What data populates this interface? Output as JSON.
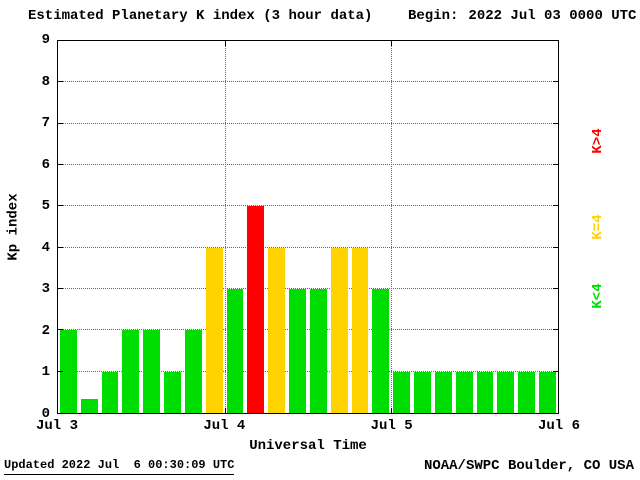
{
  "header": {
    "title": "Estimated Planetary K index (3 hour data)",
    "begin_label": "Begin:",
    "begin_value": "2022 Jul 03 0000 UTC"
  },
  "footer": {
    "updated": "Updated 2022 Jul  6 00:30:09 UTC",
    "source": "NOAA/SWPC Boulder, CO USA"
  },
  "chart_data": {
    "type": "bar",
    "title": "Estimated Planetary K index (3 hour data)",
    "xlabel": "Universal Time",
    "ylabel": "Kp index",
    "ylim": [
      0,
      9
    ],
    "yticks": [
      0,
      1,
      2,
      3,
      4,
      5,
      6,
      7,
      8,
      9
    ],
    "xtick_labels": [
      "Jul 3",
      "Jul 4",
      "Jul 5",
      "Jul 6"
    ],
    "hours_per_bar": 3,
    "bars_per_day": 8,
    "values": [
      2,
      0.33,
      1,
      2,
      2,
      1,
      2,
      4,
      3,
      5,
      4,
      3,
      3,
      4,
      4,
      3,
      1,
      1,
      1,
      1,
      1,
      1,
      1,
      1
    ],
    "colors": {
      "k_lt4": "#00dd00",
      "k_eq4": "#ffd300",
      "k_gt4": "#ff0000"
    },
    "legend": [
      {
        "label": "K>4",
        "color": "#ff0000"
      },
      {
        "label": "K=4",
        "color": "#ffd300"
      },
      {
        "label": "K<4",
        "color": "#00dd00"
      }
    ],
    "grid": "dotted horizontal lines at integer Kp, dotted vertical lines at day boundaries",
    "legend_position": "right"
  }
}
